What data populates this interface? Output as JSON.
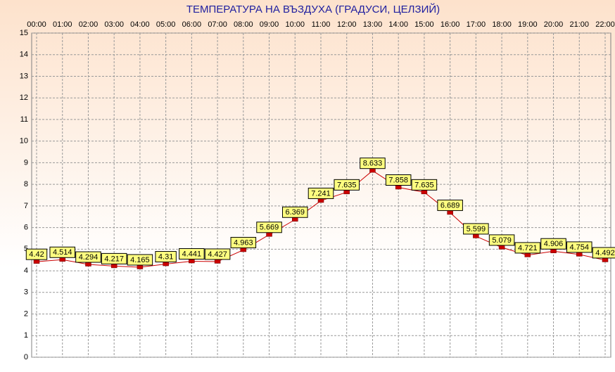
{
  "chart_data": {
    "type": "line",
    "title": "ТЕМПЕРАТУРА НА ВЪЗДУХА  (ГРАДУСИ, ЦЕЛЗИЙ)",
    "categories": [
      "00:00",
      "01:00",
      "02:00",
      "03:00",
      "04:00",
      "05:00",
      "06:00",
      "07:00",
      "08:00",
      "09:00",
      "10:00",
      "11:00",
      "12:00",
      "13:00",
      "14:00",
      "15:00",
      "16:00",
      "17:00",
      "18:00",
      "19:00",
      "20:00",
      "21:00",
      "22:00"
    ],
    "values": [
      4.42,
      4.514,
      4.294,
      4.217,
      4.165,
      4.31,
      4.441,
      4.427,
      4.963,
      5.669,
      6.369,
      7.241,
      7.635,
      8.633,
      7.858,
      7.635,
      6.689,
      5.599,
      5.079,
      4.721,
      4.906,
      4.754,
      4.492
    ],
    "color": "#cc0000",
    "ylim": [
      0,
      15
    ],
    "yticks": [
      0,
      1,
      2,
      3,
      4,
      5,
      6,
      7,
      8,
      9,
      10,
      11,
      12,
      13,
      14,
      15
    ],
    "grid": true,
    "data_labels": true
  }
}
